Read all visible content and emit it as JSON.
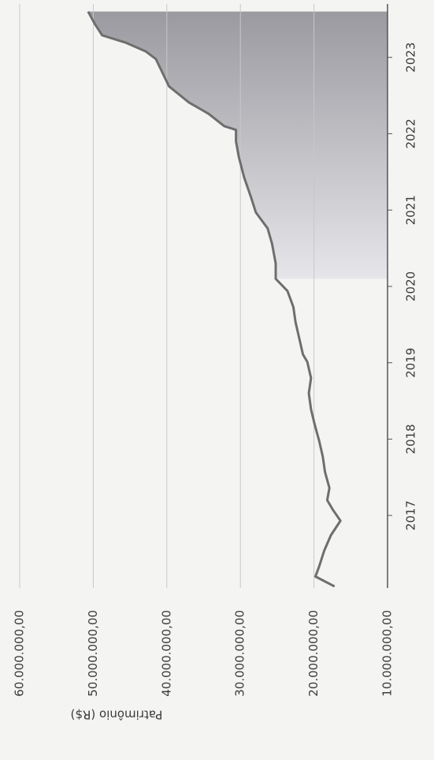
{
  "chart_data": {
    "type": "line",
    "y_label": "Patrimônio (R$)",
    "x": [
      2016.07,
      2016.2,
      2016.33,
      2016.54,
      2016.74,
      2016.93,
      2017.07,
      2017.2,
      2017.36,
      2017.57,
      2017.77,
      2017.98,
      2018.19,
      2018.39,
      2018.6,
      2018.8,
      2019.01,
      2019.11,
      2019.32,
      2019.53,
      2019.73,
      2019.94,
      2020.1,
      2020.3,
      2020.56,
      2020.76,
      2020.97,
      2021.18,
      2021.43,
      2021.69,
      2021.9,
      2022.05,
      2022.1,
      2022.26,
      2022.41,
      2022.62,
      2022.82,
      2022.98,
      2023.08,
      2023.19,
      2023.29,
      2023.44,
      2023.6
    ],
    "series": [
      {
        "color": "#6e6e6e",
        "values": [
          17200000,
          19800000,
          19300000,
          18600000,
          17700000,
          16400000,
          17400000,
          18200000,
          17900000,
          18500000,
          18800000,
          19300000,
          19900000,
          20400000,
          20700000,
          20400000,
          20900000,
          21500000,
          22000000,
          22500000,
          22800000,
          23600000,
          25200000,
          25200000,
          25700000,
          26300000,
          27900000,
          28600000,
          29500000,
          30200000,
          30600000,
          30600000,
          32200000,
          34300000,
          37000000,
          39700000,
          40700000,
          41500000,
          42900000,
          45500000,
          48800000,
          49800000,
          50700000
        ]
      }
    ],
    "shade_from": 2020.1,
    "xlim": [
      2016.05,
      2023.7
    ],
    "xticks": [
      2017,
      2018,
      2019,
      2020,
      2021,
      2022,
      2023
    ],
    "ylim": [
      10000000,
      60000000
    ],
    "yticks": [
      {
        "value": 10000000,
        "label": "10.000.000,00"
      },
      {
        "value": 20000000,
        "label": "20.000.000,00"
      },
      {
        "value": 30000000,
        "label": "30.000.000,00"
      },
      {
        "value": 40000000,
        "label": "40.000.000,00"
      },
      {
        "value": 50000000,
        "label": "50.000.000,00"
      },
      {
        "value": 60000000,
        "label": "60.000.000,00"
      }
    ],
    "grid": true
  }
}
